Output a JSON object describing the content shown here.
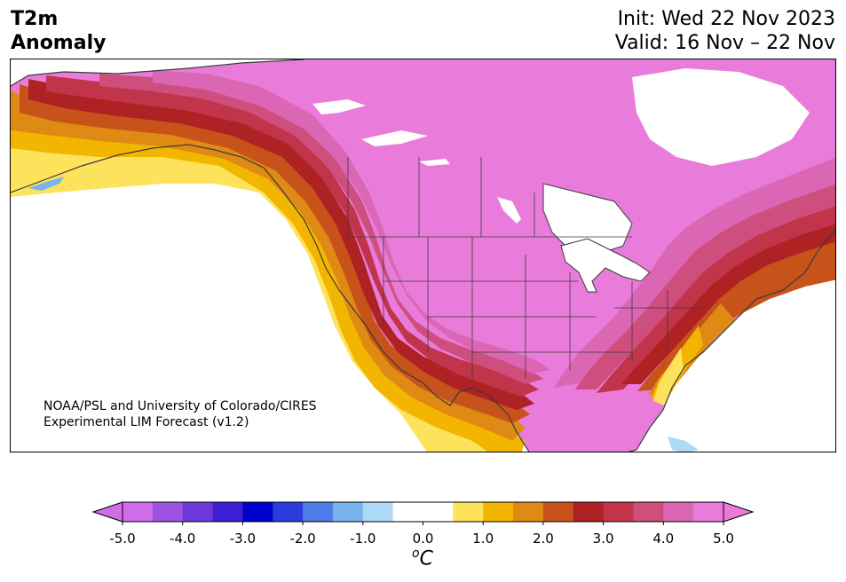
{
  "header": {
    "title_line1": "T2m",
    "title_line2": "Anomaly",
    "init_text": "Init: Wed 22 Nov 2023",
    "valid_text": "Valid: 16 Nov – 22 Nov"
  },
  "credit": {
    "line1": "NOAA/PSL and University of Colorado/CIRES",
    "line2": "Experimental LIM Forecast (v1.2)"
  },
  "colorbar": {
    "unit_base": "C",
    "unit_sup": "o",
    "colors": [
      "#cf6ee8",
      "#9d53df",
      "#6c38dc",
      "#3a1fd4",
      "#0000cc",
      "#2a3cdc",
      "#4f7be6",
      "#79b4f0",
      "#aed8f8",
      "#ffffff",
      "#ffffff",
      "#fde25c",
      "#f3b600",
      "#e08a16",
      "#c8531a",
      "#ae2224",
      "#c1344a",
      "#ce4e7d",
      "#db66b4",
      "#e97cdb"
    ],
    "under_color": "#cf6ee8",
    "over_color": "#e97cdb",
    "ticks": [
      "-5.0",
      "-4.0",
      "-3.0",
      "-2.0",
      "-1.0",
      "0.0",
      "1.0",
      "2.0",
      "3.0",
      "4.0",
      "5.0"
    ]
  },
  "legend_colors": {
    "land_base": "#e97cdb",
    "ocean": "#ffffff",
    "coast": "#3a3a3a"
  }
}
